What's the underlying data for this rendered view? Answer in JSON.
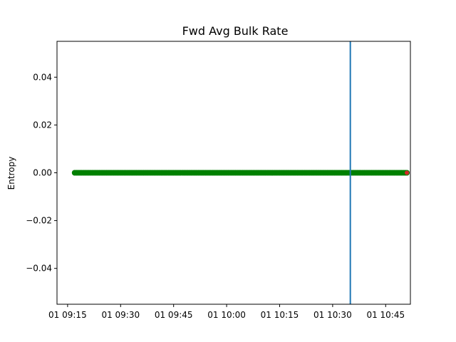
{
  "chart_data": {
    "type": "scatter",
    "title": "Fwd Avg Bulk Rate",
    "xlabel": "",
    "ylabel": "Entropy",
    "x_axis": {
      "type": "time",
      "range": [
        "09:12",
        "10:52"
      ],
      "ticks": [
        {
          "time": "09:15",
          "label": "01 09:15"
        },
        {
          "time": "09:30",
          "label": "01 09:30"
        },
        {
          "time": "09:45",
          "label": "01 09:45"
        },
        {
          "time": "10:00",
          "label": "01 10:00"
        },
        {
          "time": "10:15",
          "label": "01 10:15"
        },
        {
          "time": "10:30",
          "label": "01 10:30"
        },
        {
          "time": "10:45",
          "label": "01 10:45"
        }
      ]
    },
    "y_axis": {
      "range": [
        -0.055,
        0.055
      ],
      "ticks": [
        {
          "value": 0.04,
          "label": "0.04"
        },
        {
          "value": 0.02,
          "label": "0.02"
        },
        {
          "value": 0.0,
          "label": "0.00"
        },
        {
          "value": -0.02,
          "label": "−0.02"
        },
        {
          "value": -0.04,
          "label": "−0.04"
        }
      ]
    },
    "grid": false,
    "series": [
      {
        "color": "#008000",
        "x_start": "09:17",
        "x_end": "10:51",
        "y": 0.0
      }
    ],
    "highlight_points": [
      {
        "time": "10:51",
        "value": 0.0,
        "color": "#d62728"
      }
    ],
    "vertical_line": {
      "time": "10:35",
      "color": "#1f77b4"
    }
  }
}
